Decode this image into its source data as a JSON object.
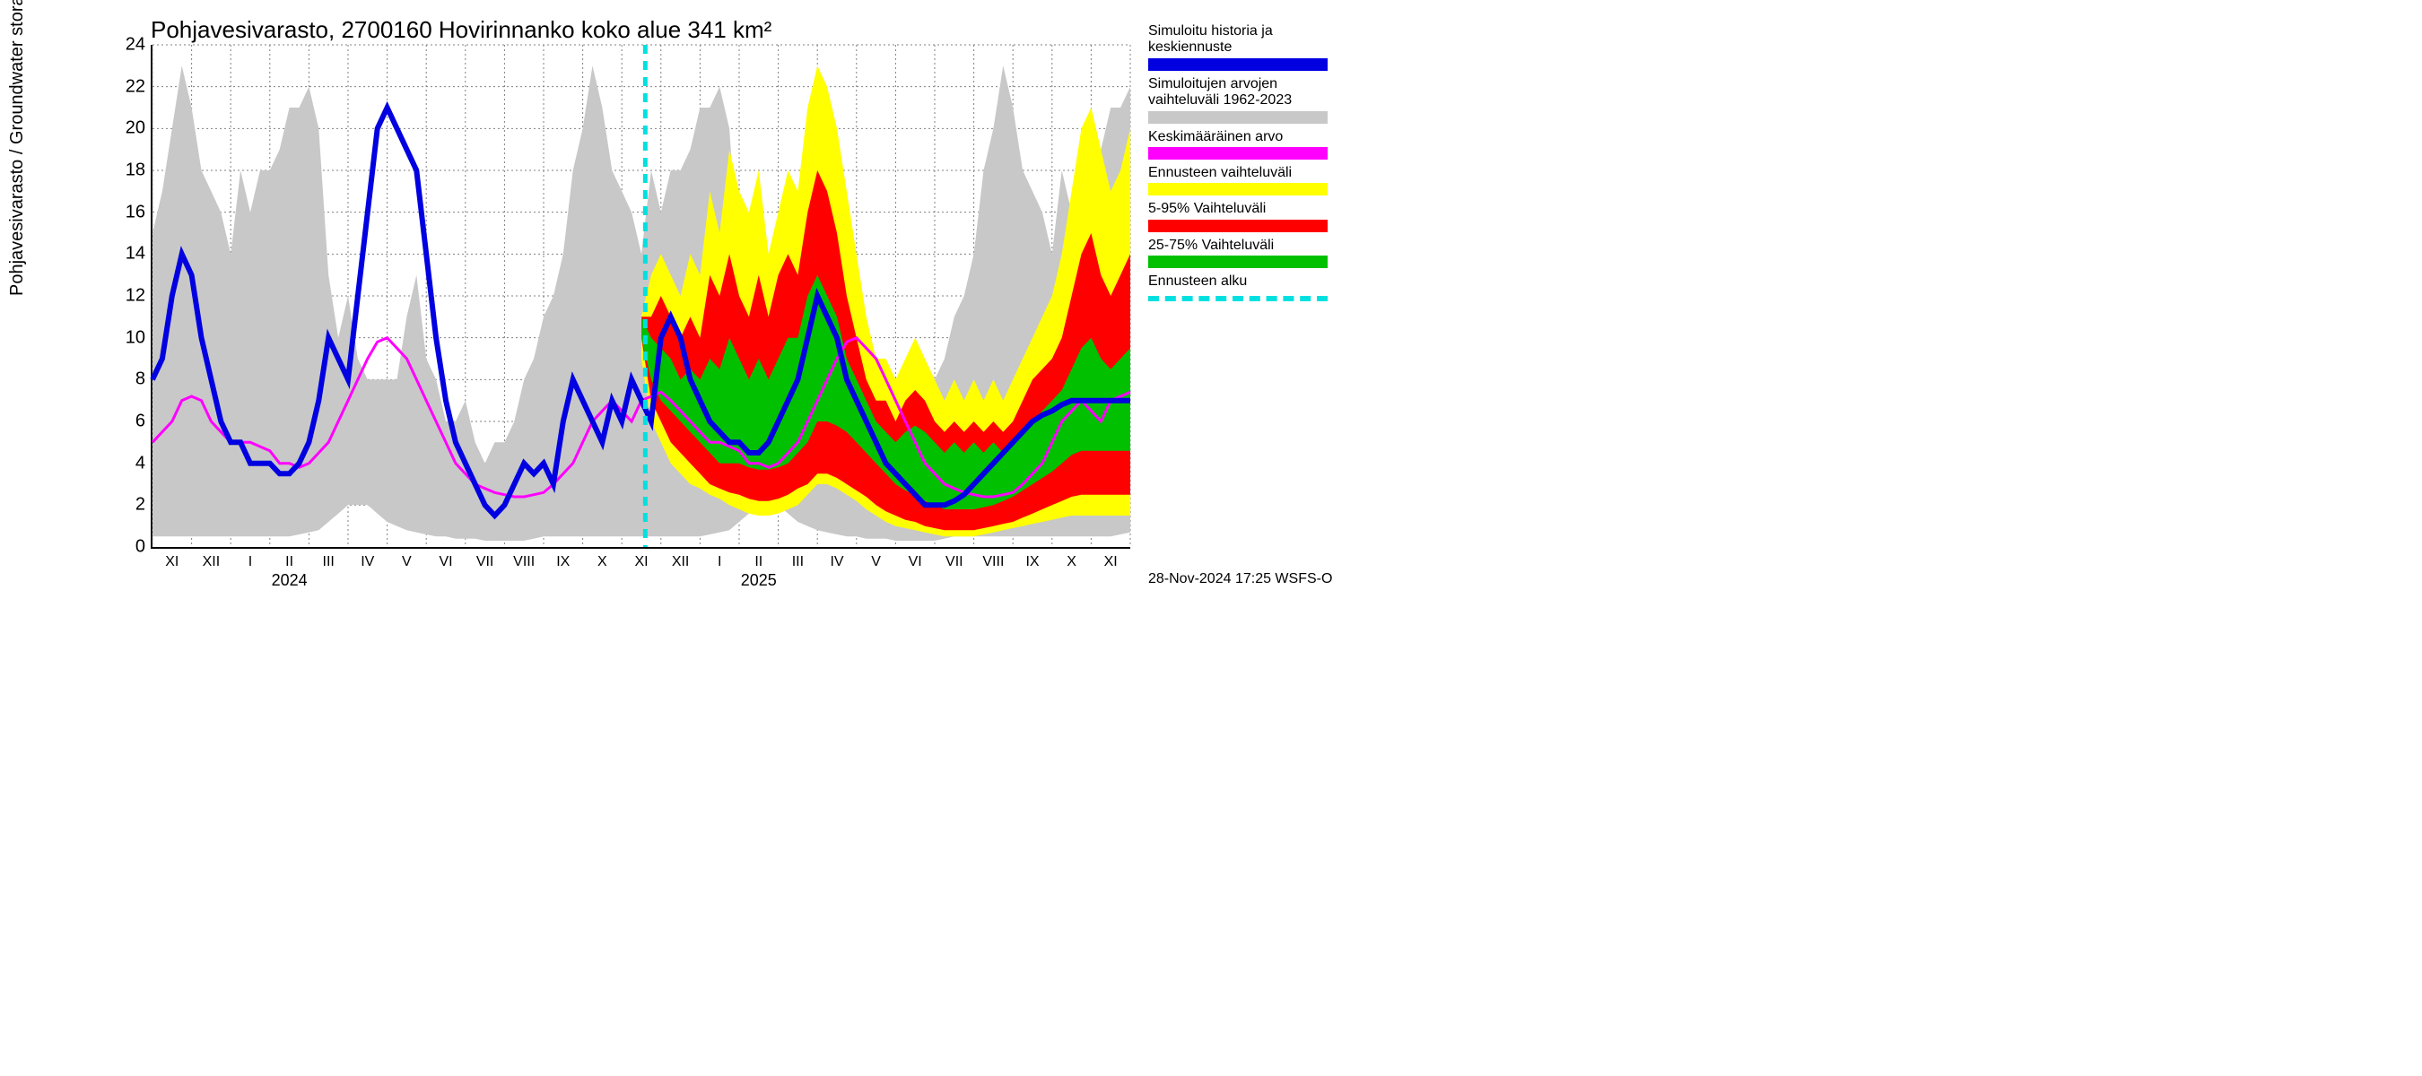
{
  "chart": {
    "title": "Pohjavesivarasto, 2700160 Hovirinnanko koko alue 341 km²",
    "y_axis_label": "Pohjavesivarasto / Groundwater storage   mm",
    "footer": "28-Nov-2024 17:25 WSFS-O",
    "ylim": [
      0,
      24
    ],
    "ytick_step": 2,
    "y_ticks": [
      0,
      2,
      4,
      6,
      8,
      10,
      12,
      14,
      16,
      18,
      20,
      22,
      24
    ],
    "x_months": [
      "XI",
      "XII",
      "I",
      "II",
      "III",
      "IV",
      "V",
      "VI",
      "VII",
      "VIII",
      "IX",
      "X",
      "XI",
      "XII",
      "I",
      "II",
      "III",
      "IV",
      "V",
      "VI",
      "VII",
      "VIII",
      "IX",
      "X",
      "XI"
    ],
    "x_years": [
      {
        "label": "2024",
        "month_index": 3
      },
      {
        "label": "2025",
        "month_index": 15
      }
    ],
    "n_months": 25,
    "forecast_start_month_index": 12.6,
    "colors": {
      "background": "#ffffff",
      "grid": "#808080",
      "axis": "#000000",
      "gray_band": "#c8c8c8",
      "blue_line": "#0000e0",
      "magenta_line": "#ff00ff",
      "yellow_band": "#ffff00",
      "red_band": "#ff0000",
      "green_band": "#00c000",
      "cyan_dash": "#00e0e0"
    },
    "line_widths": {
      "blue_line": 6,
      "magenta_line": 3,
      "cyan_dash": 5,
      "grid": 1
    },
    "series": {
      "gray_upper": [
        15,
        17,
        20,
        23,
        21,
        18,
        17,
        16,
        14,
        18,
        16,
        18,
        18,
        19,
        21,
        21,
        22,
        20,
        13,
        10,
        12,
        9,
        8,
        8,
        8,
        8,
        11,
        13,
        9,
        8,
        6,
        6,
        7,
        5,
        4,
        5,
        5,
        6,
        8,
        9,
        11,
        12,
        14,
        18,
        20,
        23,
        21,
        18,
        17,
        16,
        14,
        18,
        16,
        18,
        18,
        19,
        21,
        21,
        22,
        20,
        13,
        10,
        12,
        9,
        8,
        8,
        8,
        8,
        11,
        13,
        9,
        8,
        6,
        6,
        7,
        5,
        4,
        5,
        5,
        6,
        8,
        9,
        11,
        12,
        14,
        18,
        20,
        23,
        21,
        18,
        17,
        16,
        14,
        18,
        16,
        18,
        18,
        19,
        21,
        21,
        22
      ],
      "gray_lower": [
        0.5,
        0.5,
        0.5,
        0.5,
        0.5,
        0.5,
        0.5,
        0.5,
        0.5,
        0.5,
        0.5,
        0.5,
        0.5,
        0.5,
        0.5,
        0.6,
        0.7,
        0.8,
        1.2,
        1.6,
        2,
        2,
        2,
        1.6,
        1.2,
        1,
        0.8,
        0.7,
        0.6,
        0.5,
        0.5,
        0.4,
        0.4,
        0.4,
        0.3,
        0.3,
        0.3,
        0.3,
        0.3,
        0.4,
        0.5,
        0.5,
        0.5,
        0.5,
        0.5,
        0.5,
        0.5,
        0.5,
        0.5,
        0.5,
        0.5,
        0.5,
        0.5,
        0.5,
        0.5,
        0.5,
        0.5,
        0.6,
        0.7,
        0.8,
        1.2,
        1.6,
        2,
        2,
        2,
        1.6,
        1.2,
        1,
        0.8,
        0.7,
        0.6,
        0.5,
        0.5,
        0.4,
        0.4,
        0.4,
        0.3,
        0.3,
        0.3,
        0.3,
        0.3,
        0.4,
        0.5,
        0.5,
        0.5,
        0.5,
        0.5,
        0.5,
        0.5,
        0.5,
        0.5,
        0.5,
        0.5,
        0.5,
        0.5,
        0.5,
        0.5,
        0.5,
        0.5,
        0.6,
        0.7
      ],
      "blue": [
        8,
        9,
        12,
        14,
        13,
        10,
        8,
        6,
        5,
        5,
        4,
        4,
        4,
        3.5,
        3.5,
        4,
        5,
        7,
        10,
        9,
        8,
        12,
        16,
        20,
        21,
        20,
        19,
        18,
        14,
        10,
        7,
        5,
        4,
        3,
        2,
        1.5,
        2,
        3,
        4,
        3.5,
        4,
        3,
        6,
        8,
        7,
        6,
        5,
        7,
        6,
        8,
        7,
        6,
        10,
        11,
        10,
        8,
        7,
        6,
        5.5,
        5,
        5,
        4.5,
        4.5,
        5,
        6,
        7,
        8,
        10,
        12,
        11,
        10,
        8,
        7,
        6,
        5,
        4,
        3.5,
        3,
        2.5,
        2,
        2,
        2,
        2.2,
        2.5,
        3,
        3.5,
        4,
        4.5,
        5,
        5.5,
        6,
        6.3,
        6.5,
        6.8,
        7,
        7,
        7,
        7,
        7,
        7,
        7
      ],
      "magenta": [
        5,
        5.5,
        6,
        7,
        7.2,
        7,
        6,
        5.5,
        5,
        5,
        5,
        4.8,
        4.6,
        4,
        4,
        3.8,
        4,
        4.5,
        5,
        6,
        7,
        8,
        9,
        9.8,
        10,
        9.5,
        9,
        8,
        7,
        6,
        5,
        4,
        3.5,
        3,
        2.8,
        2.6,
        2.5,
        2.4,
        2.4,
        2.5,
        2.6,
        3,
        3.5,
        4,
        5,
        6,
        6.5,
        7,
        6.5,
        6,
        7,
        7.2,
        7.4,
        7,
        6.5,
        6,
        5.5,
        5,
        5,
        4.8,
        4.6,
        4,
        4,
        3.8,
        4,
        4.5,
        5,
        6,
        7,
        8,
        9,
        9.8,
        10,
        9.5,
        9,
        8,
        7,
        6,
        5,
        4,
        3.5,
        3,
        2.8,
        2.6,
        2.5,
        2.4,
        2.4,
        2.5,
        2.6,
        3,
        3.5,
        4,
        5,
        6,
        6.5,
        7,
        6.5,
        6,
        7,
        7.2,
        7.4
      ],
      "yellow_upper": [
        null,
        null,
        null,
        null,
        null,
        null,
        null,
        null,
        null,
        null,
        null,
        null,
        null,
        null,
        null,
        null,
        null,
        null,
        null,
        null,
        null,
        null,
        null,
        null,
        null,
        null,
        null,
        null,
        null,
        null,
        null,
        null,
        null,
        null,
        null,
        null,
        null,
        null,
        null,
        null,
        null,
        null,
        null,
        null,
        null,
        null,
        null,
        null,
        null,
        null,
        11,
        13,
        14,
        13,
        12,
        14,
        13,
        17,
        15,
        19,
        17,
        16,
        18,
        14,
        16,
        18,
        17,
        21,
        23,
        22,
        20,
        17,
        14,
        11,
        9,
        9,
        8,
        9,
        10,
        9,
        8,
        7,
        8,
        7,
        8,
        7,
        8,
        7,
        8,
        9,
        10,
        11,
        12,
        14,
        17,
        20,
        21,
        19,
        17,
        18,
        20
      ],
      "yellow_lower": [
        null,
        null,
        null,
        null,
        null,
        null,
        null,
        null,
        null,
        null,
        null,
        null,
        null,
        null,
        null,
        null,
        null,
        null,
        null,
        null,
        null,
        null,
        null,
        null,
        null,
        null,
        null,
        null,
        null,
        null,
        null,
        null,
        null,
        null,
        null,
        null,
        null,
        null,
        null,
        null,
        null,
        null,
        null,
        null,
        null,
        null,
        null,
        null,
        null,
        null,
        9,
        6,
        5,
        4,
        3.5,
        3,
        2.8,
        2.5,
        2.3,
        2,
        1.8,
        1.6,
        1.5,
        1.5,
        1.6,
        1.8,
        2,
        2.5,
        3,
        3,
        2.8,
        2.5,
        2.2,
        1.8,
        1.5,
        1.2,
        1,
        0.9,
        0.8,
        0.7,
        0.6,
        0.5,
        0.5,
        0.5,
        0.5,
        0.6,
        0.7,
        0.8,
        0.9,
        1,
        1.1,
        1.2,
        1.3,
        1.4,
        1.5,
        1.5,
        1.5,
        1.5,
        1.5,
        1.5,
        1.5
      ],
      "red_upper": [
        null,
        null,
        null,
        null,
        null,
        null,
        null,
        null,
        null,
        null,
        null,
        null,
        null,
        null,
        null,
        null,
        null,
        null,
        null,
        null,
        null,
        null,
        null,
        null,
        null,
        null,
        null,
        null,
        null,
        null,
        null,
        null,
        null,
        null,
        null,
        null,
        null,
        null,
        null,
        null,
        null,
        null,
        null,
        null,
        null,
        null,
        null,
        null,
        null,
        null,
        11,
        11,
        12,
        11,
        10,
        11,
        10,
        13,
        12,
        14,
        12,
        11,
        13,
        11,
        13,
        14,
        13,
        16,
        18,
        17,
        15,
        12,
        10,
        8,
        7,
        7,
        6,
        7,
        7.5,
        7,
        6,
        5.5,
        6,
        5.5,
        6,
        5.5,
        6,
        5.5,
        6,
        7,
        8,
        8.5,
        9,
        10,
        12,
        14,
        15,
        13,
        12,
        13,
        14
      ],
      "red_lower": [
        null,
        null,
        null,
        null,
        null,
        null,
        null,
        null,
        null,
        null,
        null,
        null,
        null,
        null,
        null,
        null,
        null,
        null,
        null,
        null,
        null,
        null,
        null,
        null,
        null,
        null,
        null,
        null,
        null,
        null,
        null,
        null,
        null,
        null,
        null,
        null,
        null,
        null,
        null,
        null,
        null,
        null,
        null,
        null,
        null,
        null,
        null,
        null,
        null,
        null,
        10,
        7,
        6,
        5,
        4.5,
        4,
        3.5,
        3,
        2.8,
        2.6,
        2.5,
        2.3,
        2.2,
        2.2,
        2.3,
        2.5,
        2.8,
        3,
        3.5,
        3.5,
        3.3,
        3,
        2.7,
        2.4,
        2,
        1.7,
        1.5,
        1.3,
        1.2,
        1,
        0.9,
        0.8,
        0.8,
        0.8,
        0.8,
        0.9,
        1,
        1.1,
        1.2,
        1.4,
        1.6,
        1.8,
        2,
        2.2,
        2.4,
        2.5,
        2.5,
        2.5,
        2.5,
        2.5,
        2.5
      ],
      "green_upper": [
        null,
        null,
        null,
        null,
        null,
        null,
        null,
        null,
        null,
        null,
        null,
        null,
        null,
        null,
        null,
        null,
        null,
        null,
        null,
        null,
        null,
        null,
        null,
        null,
        null,
        null,
        null,
        null,
        null,
        null,
        null,
        null,
        null,
        null,
        null,
        null,
        null,
        null,
        null,
        null,
        null,
        null,
        null,
        null,
        null,
        null,
        null,
        null,
        null,
        null,
        11,
        10,
        9.5,
        9,
        8,
        8.5,
        8,
        9,
        8.5,
        10,
        9,
        8,
        9,
        8,
        9,
        10,
        10,
        12,
        13,
        12,
        11,
        9,
        8,
        7,
        6,
        5.5,
        5,
        5.5,
        5.8,
        5.5,
        5,
        4.5,
        5,
        4.5,
        5,
        4.5,
        5,
        4.5,
        5,
        5.5,
        6,
        6.5,
        7,
        7.5,
        8.5,
        9.5,
        10,
        9,
        8.5,
        9,
        9.5
      ],
      "green_lower": [
        null,
        null,
        null,
        null,
        null,
        null,
        null,
        null,
        null,
        null,
        null,
        null,
        null,
        null,
        null,
        null,
        null,
        null,
        null,
        null,
        null,
        null,
        null,
        null,
        null,
        null,
        null,
        null,
        null,
        null,
        null,
        null,
        null,
        null,
        null,
        null,
        null,
        null,
        null,
        null,
        null,
        null,
        null,
        null,
        null,
        null,
        null,
        null,
        null,
        null,
        10,
        8,
        7,
        6.5,
        6,
        5.5,
        5,
        4.5,
        4,
        4,
        4,
        3.8,
        3.7,
        3.7,
        3.8,
        4,
        4.5,
        5,
        6,
        6,
        5.8,
        5.5,
        5,
        4.5,
        4,
        3.5,
        3,
        2.7,
        2.5,
        2.2,
        2,
        1.8,
        1.8,
        1.8,
        1.8,
        1.9,
        2,
        2.2,
        2.4,
        2.7,
        3,
        3.3,
        3.6,
        4,
        4.4,
        4.6,
        4.6,
        4.6,
        4.6,
        4.6,
        4.6
      ]
    }
  },
  "legend": [
    {
      "text_lines": [
        "Simuloitu historia ja",
        "keskiennuste"
      ],
      "type": "swatch",
      "color": "#0000e0"
    },
    {
      "text_lines": [
        "Simuloitujen arvojen",
        "vaihteluväli 1962-2023"
      ],
      "type": "swatch",
      "color": "#c8c8c8"
    },
    {
      "text_lines": [
        "Keskimääräinen arvo"
      ],
      "type": "swatch",
      "color": "#ff00ff"
    },
    {
      "text_lines": [
        "Ennusteen vaihteluväli"
      ],
      "type": "swatch",
      "color": "#ffff00"
    },
    {
      "text_lines": [
        "5-95% Vaihteluväli"
      ],
      "type": "swatch",
      "color": "#ff0000"
    },
    {
      "text_lines": [
        "25-75% Vaihteluväli"
      ],
      "type": "swatch",
      "color": "#00c000"
    },
    {
      "text_lines": [
        "Ennusteen alku"
      ],
      "type": "dash",
      "color": "#00e0e0"
    }
  ]
}
